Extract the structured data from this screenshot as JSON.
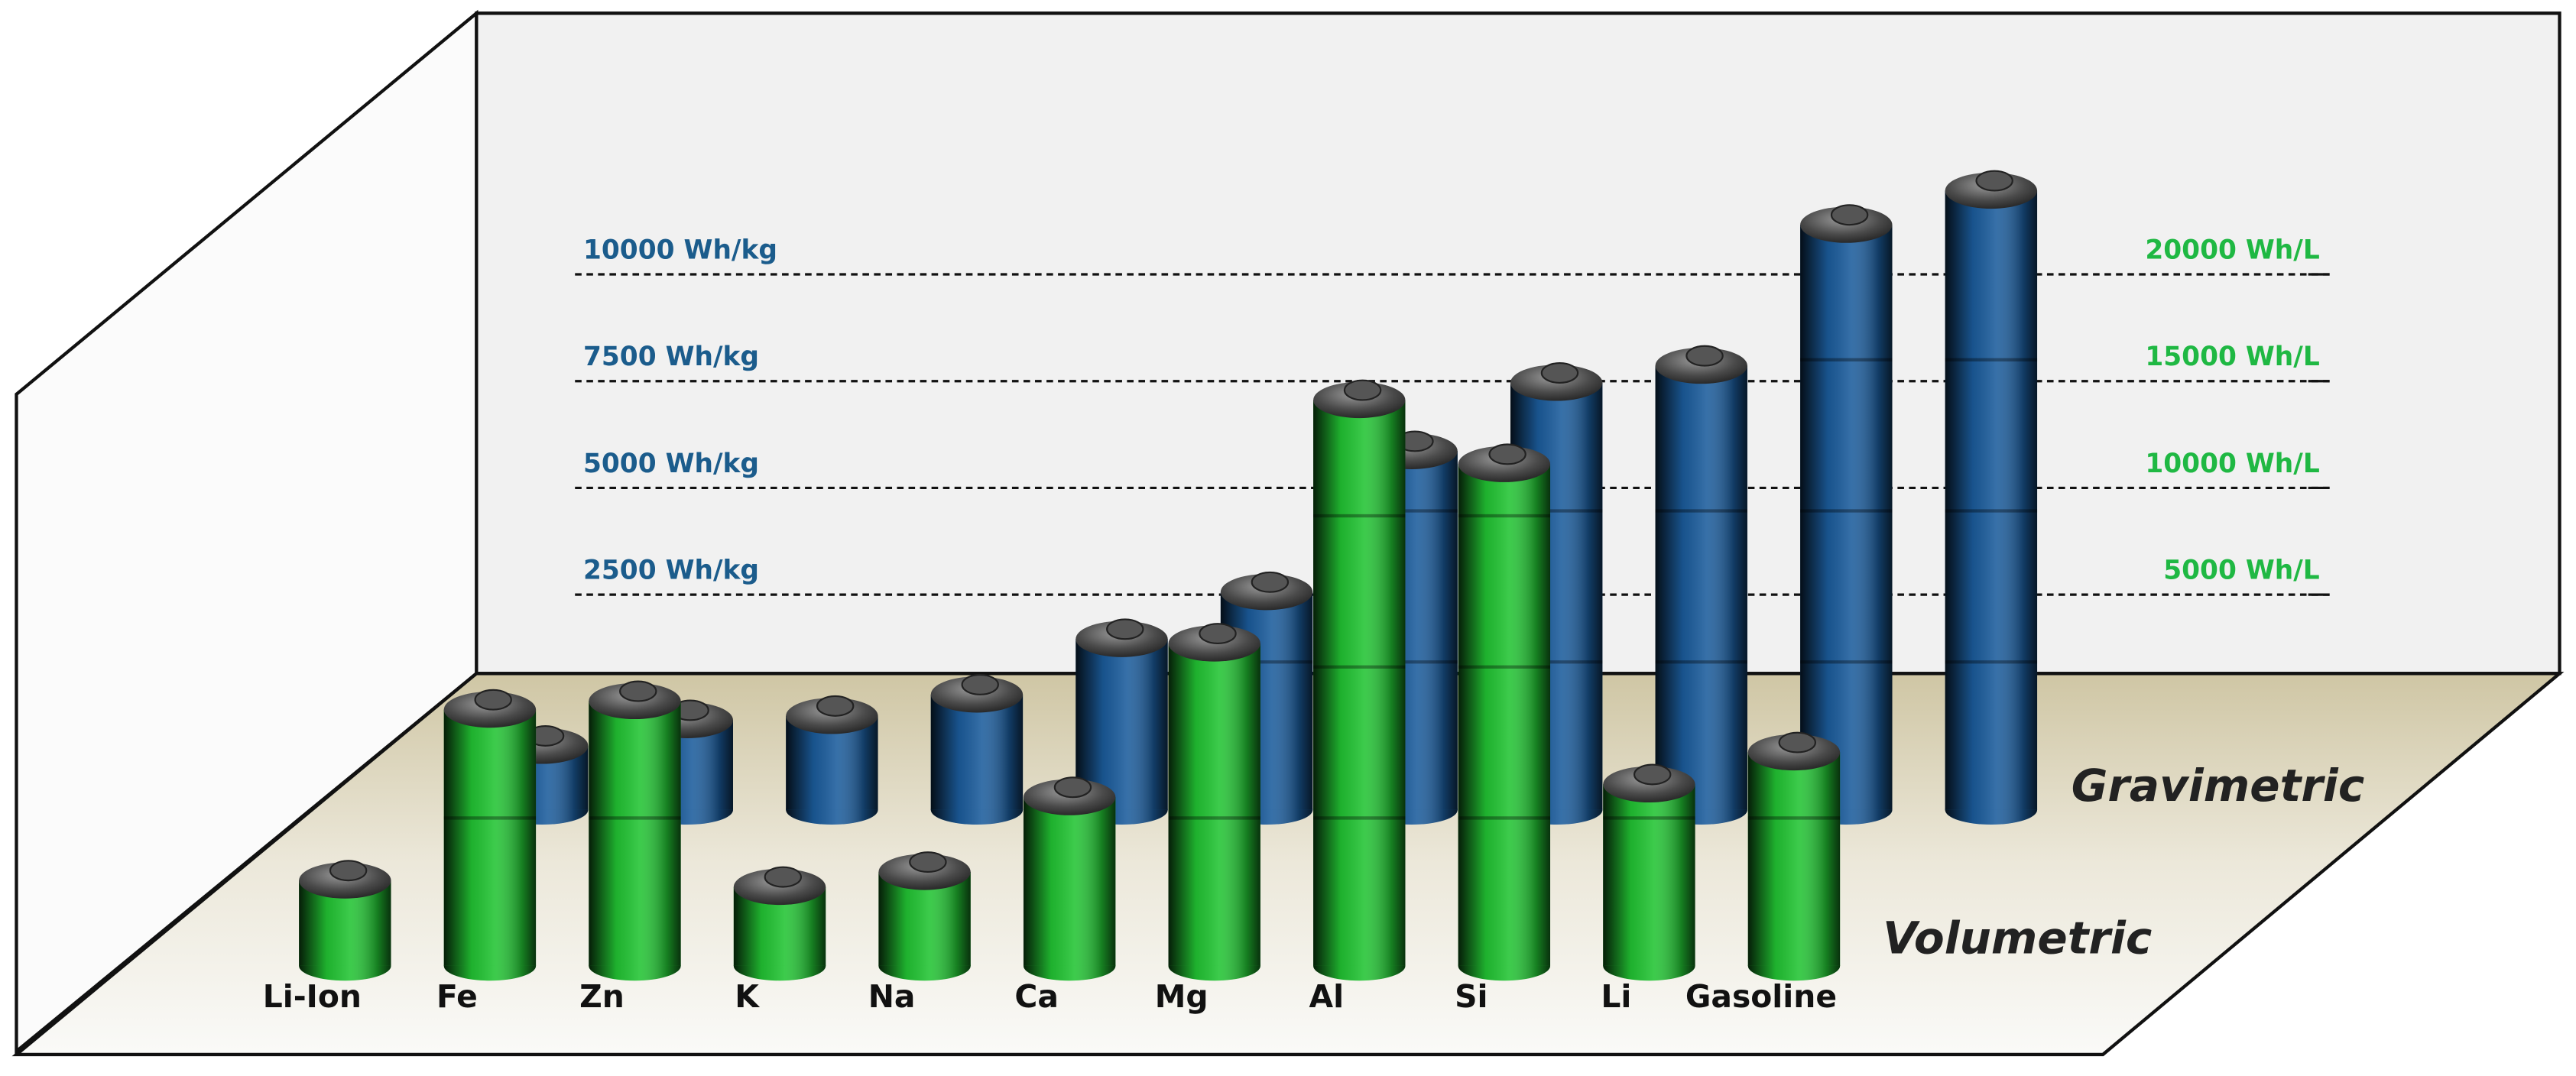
{
  "chart_data": {
    "type": "bar3d",
    "categories": [
      "Li-Ion",
      "Fe",
      "Zn",
      "K",
      "Na",
      "Ca",
      "Mg",
      "Al",
      "Si",
      "Li",
      "Gasoline"
    ],
    "series": [
      {
        "name": "Gravimetric",
        "color": "#1b5c9c",
        "axis": "y",
        "values": [
          1500,
          2100,
          2200,
          2700,
          4000,
          5100,
          8400,
          10000,
          10400,
          13700,
          14500
        ]
      },
      {
        "name": "Volumetric",
        "color": "#22c433",
        "axis": "y2",
        "values": [
          4000,
          12000,
          12400,
          3700,
          4400,
          7900,
          15100,
          26500,
          23500,
          8500,
          10000
        ]
      }
    ],
    "ylim": [
      0,
      15000
    ],
    "yticks": [
      {
        "value": 2500,
        "label": "2500 Wh/kg"
      },
      {
        "value": 5000,
        "label": "5000 Wh/kg"
      },
      {
        "value": 7500,
        "label": "7500 Wh/kg"
      },
      {
        "value": 10000,
        "label": "10000 Wh/kg"
      }
    ],
    "y2lim": [
      0,
      30000
    ],
    "y2ticks": [
      {
        "value": 5000,
        "label": "5000 Wh/L"
      },
      {
        "value": 10000,
        "label": "10000 Wh/L"
      },
      {
        "value": 15000,
        "label": "15000 Wh/L"
      },
      {
        "value": 20000,
        "label": "20000 Wh/L"
      }
    ],
    "grid": true
  }
}
